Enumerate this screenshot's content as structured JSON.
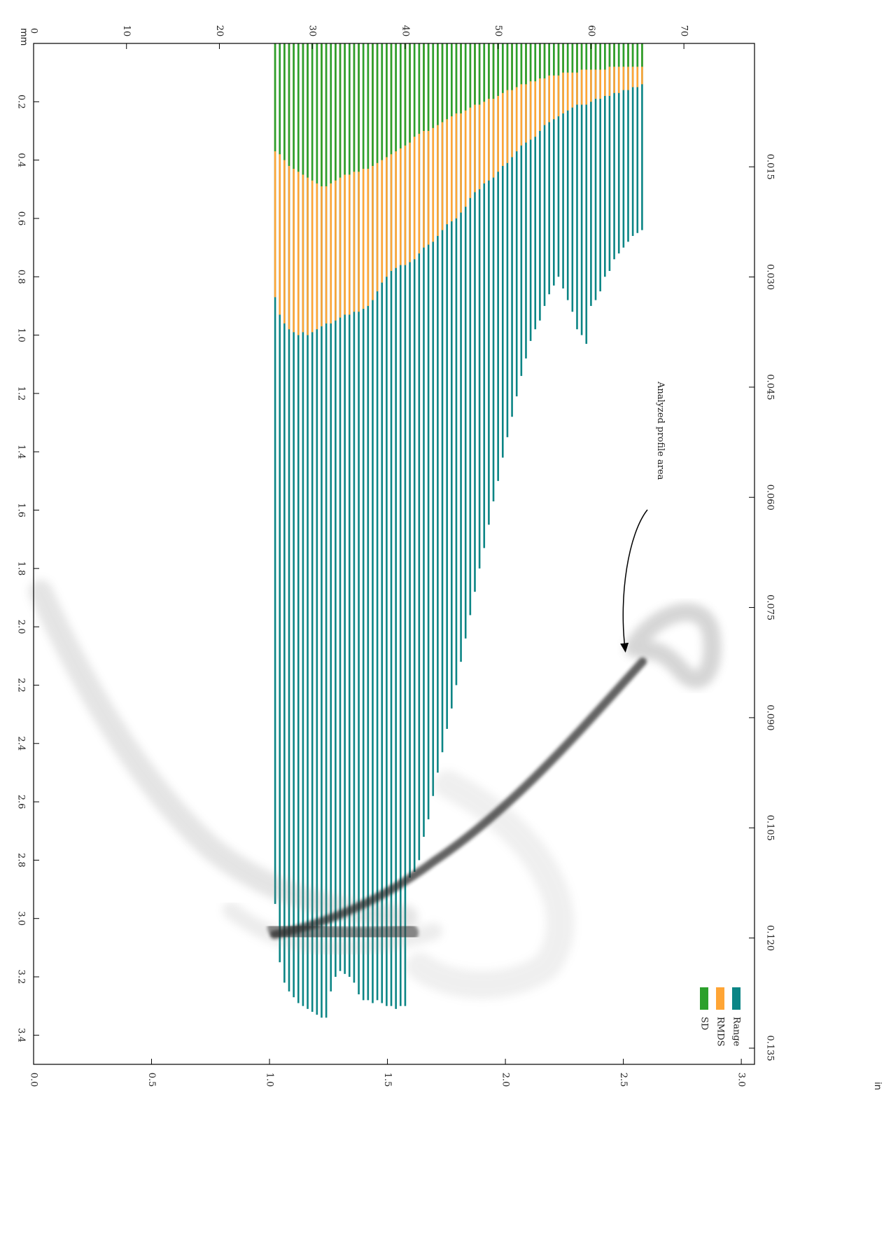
{
  "chart_data": {
    "type": "bar",
    "orientation": "depth-down",
    "annotation": "Analyzed profile area",
    "xlabel": "mm",
    "x2label": "in",
    "xlim": [
      0,
      77.6
    ],
    "xticks": [
      0,
      10,
      20,
      30,
      40,
      50,
      60,
      70
    ],
    "x2lim": [
      0,
      3.056
    ],
    "x2ticks": [
      {
        "value": 0,
        "label": "0.0"
      },
      0.5,
      {
        "value": 1,
        "label": "1.0"
      },
      1.5,
      {
        "value": 2,
        "label": "2.0"
      },
      2.5,
      {
        "value": 3,
        "label": "3.0"
      }
    ],
    "ylim": [
      0,
      3.5
    ],
    "yticks": [
      0.2,
      0.4,
      0.6,
      0.8,
      {
        "value": 1,
        "label": "1.0"
      },
      1.2,
      1.4,
      1.6,
      1.8,
      {
        "value": 2,
        "label": "2.0"
      },
      2.2,
      2.4,
      2.6,
      2.8,
      {
        "value": 3,
        "label": "3.0"
      },
      3.2,
      3.4
    ],
    "y2lim": [
      -0.0018,
      0.1372
    ],
    "y2ticks": [
      0.015,
      {
        "value": 0.03,
        "label": "0.030"
      },
      0.045,
      {
        "value": 0.06,
        "label": "0.060"
      },
      0.075,
      {
        "value": 0.09,
        "label": "0.090"
      },
      0.105,
      {
        "value": 0.12,
        "label": "0.120"
      },
      0.135
    ],
    "legend": "lower right",
    "x": [
      26,
      26.5,
      27,
      27.5,
      28,
      28.5,
      29,
      29.5,
      30,
      30.5,
      31,
      31.5,
      32,
      32.5,
      33,
      33.5,
      34,
      34.5,
      35,
      35.5,
      36,
      36.5,
      37,
      37.5,
      38,
      38.5,
      39,
      39.5,
      40,
      40.5,
      41,
      41.5,
      42,
      42.5,
      43,
      43.5,
      44,
      44.5,
      45,
      45.5,
      46,
      46.5,
      47,
      47.5,
      48,
      48.5,
      49,
      49.5,
      50,
      50.5,
      51,
      51.5,
      52,
      52.5,
      53,
      53.5,
      54,
      54.5,
      55,
      55.5,
      56,
      56.5,
      57,
      57.5,
      58,
      58.5,
      59,
      59.5,
      60,
      60.5,
      61,
      61.5,
      62,
      62.5,
      63,
      63.5,
      64,
      64.5,
      65,
      65.5
    ],
    "series": [
      {
        "name": "Range",
        "color": "#0b8585",
        "values": [
          2.95,
          3.15,
          3.22,
          3.25,
          3.27,
          3.29,
          3.3,
          3.31,
          3.32,
          3.33,
          3.34,
          3.34,
          3.25,
          3.2,
          3.18,
          3.19,
          3.2,
          3.22,
          3.26,
          3.28,
          3.28,
          3.29,
          3.28,
          3.29,
          3.3,
          3.3,
          3.31,
          3.3,
          3.3,
          2.86,
          2.84,
          2.8,
          2.72,
          2.66,
          2.58,
          2.5,
          2.43,
          2.35,
          2.28,
          2.2,
          2.12,
          2.04,
          1.96,
          1.88,
          1.8,
          1.73,
          1.65,
          1.57,
          1.5,
          1.42,
          1.35,
          1.28,
          1.21,
          1.14,
          1.08,
          1.02,
          0.98,
          0.95,
          0.9,
          0.86,
          0.83,
          0.8,
          0.84,
          0.88,
          0.92,
          0.98,
          1.0,
          1.03,
          0.9,
          0.88,
          0.85,
          0.8,
          0.78,
          0.74,
          0.72,
          0.7,
          0.68,
          0.66,
          0.65,
          0.64
        ]
      },
      {
        "name": "RMDS",
        "color": "#ffa535",
        "values": [
          0.87,
          0.93,
          0.96,
          0.98,
          0.99,
          1.0,
          0.99,
          1.0,
          0.99,
          0.98,
          0.97,
          0.96,
          0.96,
          0.95,
          0.94,
          0.93,
          0.93,
          0.92,
          0.92,
          0.91,
          0.9,
          0.88,
          0.85,
          0.82,
          0.8,
          0.78,
          0.77,
          0.76,
          0.76,
          0.75,
          0.74,
          0.72,
          0.7,
          0.69,
          0.68,
          0.66,
          0.64,
          0.62,
          0.61,
          0.6,
          0.58,
          0.56,
          0.53,
          0.51,
          0.5,
          0.48,
          0.47,
          0.46,
          0.44,
          0.42,
          0.41,
          0.39,
          0.37,
          0.35,
          0.34,
          0.33,
          0.32,
          0.3,
          0.28,
          0.27,
          0.26,
          0.25,
          0.24,
          0.23,
          0.22,
          0.21,
          0.21,
          0.21,
          0.2,
          0.19,
          0.19,
          0.18,
          0.18,
          0.17,
          0.17,
          0.16,
          0.16,
          0.15,
          0.15,
          0.14
        ]
      },
      {
        "name": "SD",
        "color": "#2ca02c",
        "values": [
          0.37,
          0.38,
          0.4,
          0.42,
          0.43,
          0.44,
          0.45,
          0.46,
          0.47,
          0.48,
          0.49,
          0.49,
          0.48,
          0.47,
          0.46,
          0.45,
          0.45,
          0.44,
          0.44,
          0.43,
          0.43,
          0.42,
          0.41,
          0.4,
          0.39,
          0.38,
          0.37,
          0.36,
          0.35,
          0.34,
          0.32,
          0.31,
          0.3,
          0.3,
          0.29,
          0.28,
          0.27,
          0.26,
          0.25,
          0.24,
          0.24,
          0.23,
          0.22,
          0.21,
          0.21,
          0.2,
          0.19,
          0.19,
          0.18,
          0.17,
          0.16,
          0.16,
          0.15,
          0.14,
          0.14,
          0.13,
          0.13,
          0.12,
          0.12,
          0.11,
          0.11,
          0.11,
          0.1,
          0.1,
          0.1,
          0.1,
          0.09,
          0.09,
          0.09,
          0.09,
          0.09,
          0.09,
          0.08,
          0.08,
          0.08,
          0.08,
          0.08,
          0.08,
          0.08,
          0.08
        ]
      }
    ]
  }
}
